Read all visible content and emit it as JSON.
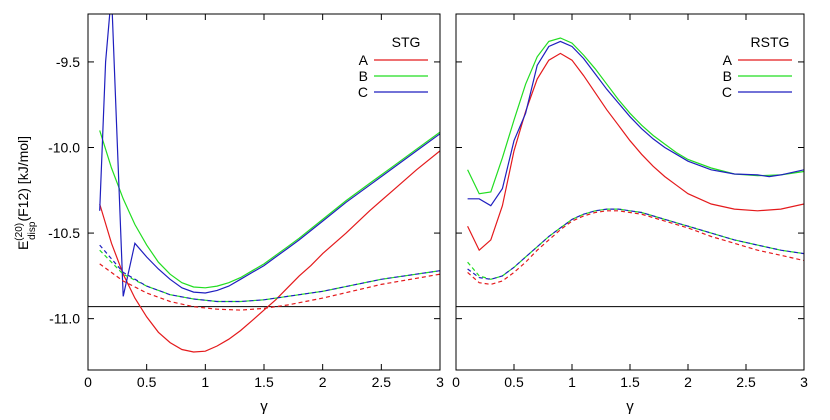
{
  "ylabel_main": "E",
  "ylabel_sup": "(20)",
  "ylabel_sub": "disp",
  "ylabel_rest": "(F12) [kJ/mol]",
  "chart_data": [
    {
      "type": "line",
      "title": "",
      "legend_title": "STG",
      "legend_position": "top-right",
      "xlabel": "γ",
      "ylabel": "E(20)disp(F12) [kJ/mol]",
      "xlim": [
        0,
        3
      ],
      "ylim": [
        -11.3,
        -9.22
      ],
      "xticks": [
        0,
        0.5,
        1,
        1.5,
        2,
        2.5,
        3
      ],
      "xtick_labels": [
        "0",
        "0.5",
        "1",
        "1.5",
        "2",
        "2.5",
        "3"
      ],
      "yticks": [
        -11.0,
        -10.5,
        -10.0,
        -9.5
      ],
      "ytick_labels": [
        "-11.0",
        "-10.5",
        "-10.0",
        "-9.5"
      ],
      "reference_line": -10.93,
      "grid": false,
      "series": [
        {
          "name": "A",
          "color": "#e41a1c",
          "style": "solid",
          "x": [
            0.1,
            0.2,
            0.3,
            0.4,
            0.5,
            0.6,
            0.7,
            0.8,
            0.9,
            1.0,
            1.1,
            1.2,
            1.3,
            1.4,
            1.5,
            1.6,
            1.7,
            1.8,
            1.9,
            2.0,
            2.2,
            2.4,
            2.6,
            2.8,
            3.0
          ],
          "y": [
            -10.33,
            -10.56,
            -10.74,
            -10.88,
            -10.99,
            -11.08,
            -11.14,
            -11.18,
            -11.195,
            -11.19,
            -11.16,
            -11.12,
            -11.07,
            -11.01,
            -10.95,
            -10.89,
            -10.82,
            -10.75,
            -10.69,
            -10.62,
            -10.5,
            -10.37,
            -10.25,
            -10.13,
            -10.02
          ]
        },
        {
          "name": "B",
          "color": "#22dd22",
          "style": "solid",
          "x": [
            0.1,
            0.2,
            0.3,
            0.4,
            0.5,
            0.6,
            0.7,
            0.8,
            0.9,
            1.0,
            1.1,
            1.2,
            1.3,
            1.4,
            1.5,
            1.6,
            1.7,
            1.8,
            2.0,
            2.2,
            2.4,
            2.6,
            2.8,
            3.0
          ],
          "y": [
            -9.9,
            -10.12,
            -10.3,
            -10.45,
            -10.57,
            -10.67,
            -10.74,
            -10.79,
            -10.815,
            -10.82,
            -10.81,
            -10.79,
            -10.76,
            -10.72,
            -10.68,
            -10.63,
            -10.58,
            -10.53,
            -10.42,
            -10.31,
            -10.21,
            -10.11,
            -10.01,
            -9.91
          ]
        },
        {
          "name": "C",
          "color": "#1f1fbf",
          "style": "solid",
          "x": [
            0.1,
            0.15,
            0.2,
            0.3,
            0.4,
            0.5,
            0.6,
            0.7,
            0.8,
            0.9,
            1.0,
            1.1,
            1.2,
            1.3,
            1.4,
            1.5,
            1.6,
            1.7,
            1.8,
            2.0,
            2.2,
            2.4,
            2.6,
            2.8,
            3.0
          ],
          "y": [
            -10.37,
            -9.5,
            -9.1,
            -10.87,
            -10.56,
            -10.64,
            -10.71,
            -10.77,
            -10.82,
            -10.845,
            -10.85,
            -10.835,
            -10.81,
            -10.77,
            -10.73,
            -10.69,
            -10.64,
            -10.59,
            -10.54,
            -10.43,
            -10.32,
            -10.22,
            -10.12,
            -10.02,
            -9.92
          ]
        },
        {
          "name": "",
          "color": "#e41a1c",
          "style": "dashed",
          "x": [
            0.1,
            0.3,
            0.5,
            0.7,
            0.9,
            1.1,
            1.3,
            1.5,
            1.7,
            2.0,
            2.5,
            3.0
          ],
          "y": [
            -10.68,
            -10.78,
            -10.85,
            -10.9,
            -10.93,
            -10.945,
            -10.95,
            -10.94,
            -10.92,
            -10.88,
            -10.8,
            -10.74
          ]
        },
        {
          "name": "",
          "color": "#22dd22",
          "style": "dashed",
          "x": [
            0.1,
            0.3,
            0.5,
            0.7,
            0.9,
            1.1,
            1.3,
            1.5,
            1.7,
            2.0,
            2.5,
            3.0
          ],
          "y": [
            -10.6,
            -10.74,
            -10.81,
            -10.86,
            -10.885,
            -10.9,
            -10.9,
            -10.89,
            -10.87,
            -10.84,
            -10.77,
            -10.72
          ]
        },
        {
          "name": "",
          "color": "#1f1fbf",
          "style": "dashed",
          "x": [
            0.1,
            0.3,
            0.5,
            0.7,
            0.9,
            1.1,
            1.3,
            1.5,
            1.7,
            2.0,
            2.5,
            3.0
          ],
          "y": [
            -10.57,
            -10.73,
            -10.81,
            -10.86,
            -10.885,
            -10.9,
            -10.9,
            -10.89,
            -10.87,
            -10.84,
            -10.77,
            -10.72
          ]
        }
      ]
    },
    {
      "type": "line",
      "title": "",
      "legend_title": "RSTG",
      "legend_position": "top-right",
      "xlabel": "γ",
      "ylabel": "",
      "xlim": [
        0,
        3
      ],
      "ylim": [
        -11.3,
        -9.22
      ],
      "xticks": [
        0,
        0.5,
        1,
        1.5,
        2,
        2.5,
        3
      ],
      "xtick_labels": [
        "0",
        "0.5",
        "1",
        "1.5",
        "2",
        "2.5",
        "3"
      ],
      "yticks": [
        -11.0,
        -10.5,
        -10.0,
        -9.5
      ],
      "ytick_labels": [],
      "reference_line": -10.93,
      "grid": false,
      "series": [
        {
          "name": "A",
          "color": "#e41a1c",
          "style": "solid",
          "x": [
            0.1,
            0.2,
            0.3,
            0.4,
            0.5,
            0.6,
            0.7,
            0.8,
            0.9,
            1.0,
            1.1,
            1.2,
            1.3,
            1.4,
            1.5,
            1.6,
            1.7,
            1.8,
            1.9,
            2.0,
            2.2,
            2.4,
            2.6,
            2.8,
            3.0
          ],
          "y": [
            -10.46,
            -10.6,
            -10.54,
            -10.34,
            -10.02,
            -9.79,
            -9.6,
            -9.49,
            -9.45,
            -9.49,
            -9.58,
            -9.68,
            -9.78,
            -9.87,
            -9.96,
            -10.04,
            -10.11,
            -10.17,
            -10.22,
            -10.27,
            -10.33,
            -10.36,
            -10.37,
            -10.36,
            -10.33
          ]
        },
        {
          "name": "B",
          "color": "#22dd22",
          "style": "solid",
          "x": [
            0.1,
            0.2,
            0.3,
            0.4,
            0.5,
            0.6,
            0.7,
            0.8,
            0.9,
            1.0,
            1.1,
            1.2,
            1.3,
            1.4,
            1.5,
            1.6,
            1.7,
            1.8,
            1.9,
            2.0,
            2.2,
            2.4,
            2.6,
            2.8,
            3.0
          ],
          "y": [
            -10.13,
            -10.27,
            -10.26,
            -10.06,
            -9.84,
            -9.63,
            -9.47,
            -9.38,
            -9.36,
            -9.39,
            -9.46,
            -9.54,
            -9.63,
            -9.72,
            -9.8,
            -9.87,
            -9.93,
            -9.98,
            -10.03,
            -10.07,
            -10.12,
            -10.155,
            -10.165,
            -10.16,
            -10.14
          ]
        },
        {
          "name": "C",
          "color": "#1f1fbf",
          "style": "solid",
          "x": [
            0.1,
            0.2,
            0.3,
            0.4,
            0.5,
            0.6,
            0.7,
            0.8,
            0.9,
            1.0,
            1.1,
            1.2,
            1.3,
            1.4,
            1.5,
            1.6,
            1.7,
            1.8,
            1.9,
            2.0,
            2.2,
            2.4,
            2.6,
            2.7,
            2.8,
            3.0
          ],
          "y": [
            -10.3,
            -10.3,
            -10.34,
            -10.24,
            -9.96,
            -9.8,
            -9.52,
            -9.41,
            -9.38,
            -9.41,
            -9.48,
            -9.57,
            -9.66,
            -9.74,
            -9.82,
            -9.89,
            -9.95,
            -10.0,
            -10.04,
            -10.08,
            -10.13,
            -10.155,
            -10.16,
            -10.17,
            -10.16,
            -10.13
          ]
        },
        {
          "name": "",
          "color": "#e41a1c",
          "style": "dashed",
          "x": [
            0.1,
            0.2,
            0.3,
            0.4,
            0.5,
            0.6,
            0.7,
            0.8,
            0.9,
            1.0,
            1.1,
            1.2,
            1.3,
            1.4,
            1.5,
            1.6,
            1.8,
            2.0,
            2.2,
            2.4,
            2.6,
            2.8,
            3.0
          ],
          "y": [
            -10.73,
            -10.79,
            -10.8,
            -10.78,
            -10.73,
            -10.67,
            -10.6,
            -10.54,
            -10.48,
            -10.43,
            -10.4,
            -10.38,
            -10.37,
            -10.37,
            -10.38,
            -10.39,
            -10.43,
            -10.47,
            -10.52,
            -10.56,
            -10.6,
            -10.63,
            -10.66
          ]
        },
        {
          "name": "",
          "color": "#22dd22",
          "style": "dashed",
          "x": [
            0.1,
            0.2,
            0.3,
            0.4,
            0.5,
            0.6,
            0.7,
            0.8,
            0.9,
            1.0,
            1.1,
            1.2,
            1.3,
            1.4,
            1.5,
            1.6,
            1.8,
            2.0,
            2.2,
            2.4,
            2.6,
            2.8,
            3.0
          ],
          "y": [
            -10.67,
            -10.75,
            -10.77,
            -10.75,
            -10.7,
            -10.64,
            -10.58,
            -10.52,
            -10.47,
            -10.42,
            -10.39,
            -10.37,
            -10.36,
            -10.36,
            -10.37,
            -10.38,
            -10.42,
            -10.46,
            -10.5,
            -10.54,
            -10.57,
            -10.6,
            -10.62
          ]
        },
        {
          "name": "",
          "color": "#1f1fbf",
          "style": "dashed",
          "x": [
            0.1,
            0.2,
            0.3,
            0.4,
            0.5,
            0.6,
            0.7,
            0.8,
            0.9,
            1.0,
            1.1,
            1.2,
            1.3,
            1.4,
            1.5,
            1.6,
            1.8,
            2.0,
            2.2,
            2.4,
            2.6,
            2.8,
            3.0
          ],
          "y": [
            -10.71,
            -10.76,
            -10.77,
            -10.75,
            -10.7,
            -10.64,
            -10.58,
            -10.52,
            -10.47,
            -10.42,
            -10.39,
            -10.37,
            -10.36,
            -10.36,
            -10.37,
            -10.38,
            -10.42,
            -10.46,
            -10.5,
            -10.54,
            -10.57,
            -10.6,
            -10.62
          ]
        }
      ]
    }
  ]
}
